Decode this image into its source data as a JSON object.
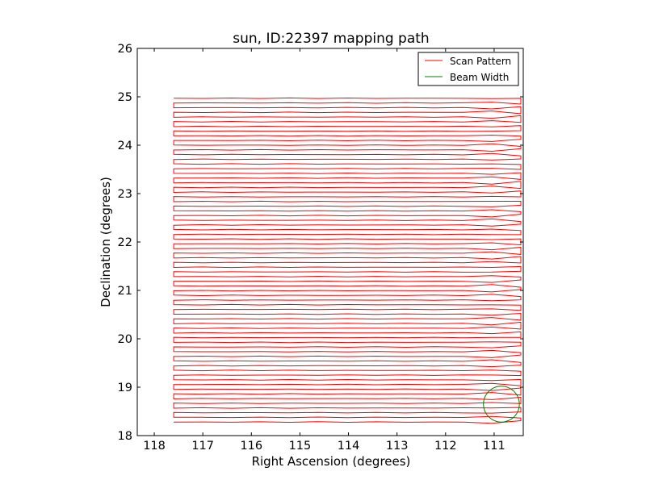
{
  "chart_data": {
    "type": "line",
    "title": "sun, ID:22397 mapping path",
    "xlabel": "Right Ascension (degrees)",
    "ylabel": "Declination (degrees)",
    "xlim": [
      118.35,
      110.4
    ],
    "ylim": [
      18,
      26
    ],
    "x_ticks": [
      118,
      117,
      116,
      115,
      114,
      113,
      112,
      111
    ],
    "y_ticks": [
      18,
      19,
      20,
      21,
      22,
      23,
      24,
      25,
      26
    ],
    "grid": false,
    "legend_position": "top-right",
    "scan_pattern": {
      "ra_start": 117.6,
      "ra_end": 110.45,
      "dec_start": 18.28,
      "dec_end": 24.97,
      "row_count": 70
    },
    "series": [
      {
        "name": "Scan Pattern",
        "color": "#ff0000"
      },
      {
        "name": "Beam Width",
        "color": "#008000",
        "center": [
          110.85,
          18.65
        ],
        "radius_deg": 0.37
      }
    ]
  }
}
